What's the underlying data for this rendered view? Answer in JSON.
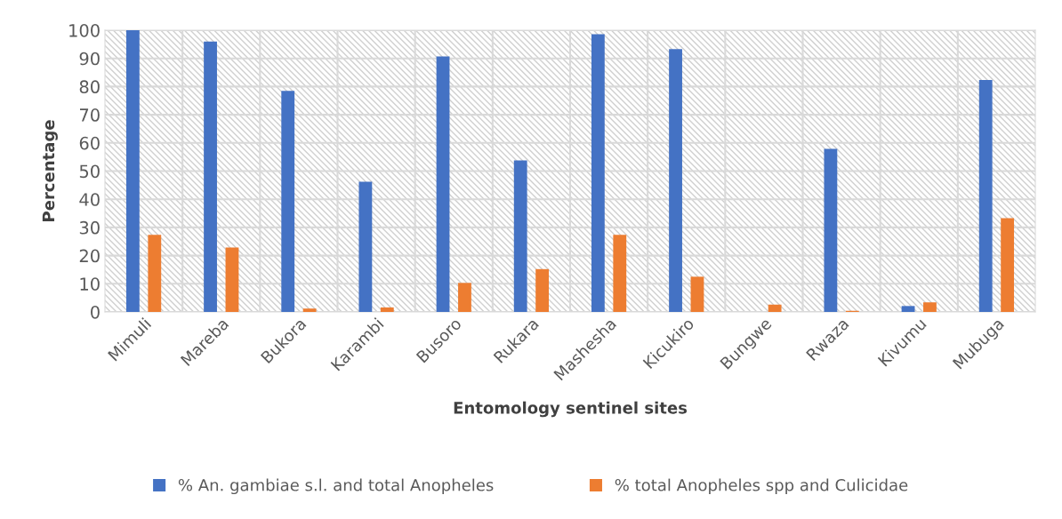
{
  "chart_data": {
    "type": "bar",
    "xlabel": "Entomology sentinel sites",
    "ylabel": "Percentage",
    "categories": [
      "Mimuli",
      "Mareba",
      "Bukora",
      "Karambi",
      "Busoro",
      "Rukara",
      "Mashesha",
      "Kicukiro",
      "Bungwe",
      "Rwaza",
      "Kivumu",
      "Mubuga"
    ],
    "series": [
      {
        "name": "% An. gambiae s.l. and total Anopheles",
        "color": "#4472c4",
        "values": [
          100,
          96,
          78.5,
          46.2,
          90.7,
          53.8,
          98.6,
          93.3,
          0,
          57.9,
          2.1,
          82.3
        ]
      },
      {
        "name": "% total Anopheles spp and Culicidae",
        "color": "#ed7d31",
        "values": [
          27.4,
          22.9,
          1.2,
          1.6,
          10.3,
          15.2,
          27.4,
          12.5,
          2.6,
          0.4,
          3.4,
          33.3
        ]
      }
    ],
    "ylim": [
      0,
      100
    ],
    "yticks": [
      0,
      10,
      20,
      30,
      40,
      50,
      60,
      70,
      80,
      90,
      100
    ],
    "grid": true,
    "legend": "bottom"
  }
}
